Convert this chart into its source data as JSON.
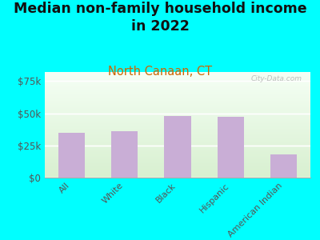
{
  "title": "Median non-family household income\nin 2022",
  "subtitle": "North Canaan, CT",
  "categories": [
    "All",
    "White",
    "Black",
    "Hispanic",
    "American Indian"
  ],
  "values": [
    35000,
    36000,
    48000,
    47500,
    18000
  ],
  "bar_color": "#c9aed6",
  "title_fontsize": 12.5,
  "subtitle_fontsize": 10.5,
  "subtitle_color": "#cc6600",
  "title_color": "#111111",
  "ylabel_ticks": [
    0,
    25000,
    50000,
    75000
  ],
  "ylabel_labels": [
    "$0",
    "$25k",
    "$50k",
    "$75k"
  ],
  "ylim": [
    0,
    82000
  ],
  "background_outer": "#00ffff",
  "watermark": "City-Data.com",
  "tick_color": "#555555",
  "grid_color": "#cccccc"
}
